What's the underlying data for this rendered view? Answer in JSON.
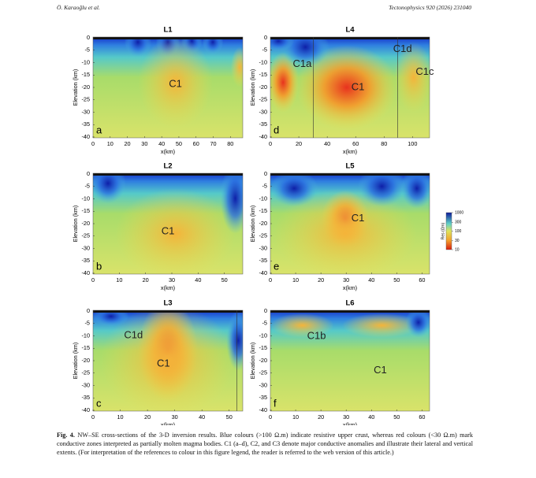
{
  "header": {
    "author": "Ö. Karaoğlu et al.",
    "journal": "Tectonophysics 920 (2026) 231040"
  },
  "panels": [
    {
      "title": "L1",
      "letter": "a",
      "xlabel": "x(km)",
      "ylabel": "Elevation (km)",
      "xticks": [
        0,
        10,
        20,
        30,
        40,
        50,
        60,
        70,
        80
      ],
      "yticks": [
        0,
        -5,
        -10,
        -15,
        -20,
        -25,
        -30,
        -35,
        -40
      ],
      "annotations": [
        "C1"
      ]
    },
    {
      "title": "L4",
      "letter": "d",
      "xlabel": "x(km)",
      "ylabel": "Elevation (km)",
      "xticks": [
        0,
        20,
        40,
        60,
        80,
        100
      ],
      "yticks": [
        0,
        -5,
        -10,
        -15,
        -20,
        -25,
        -30,
        -35,
        -40
      ],
      "annotations": [
        "C1a",
        "C1d",
        "C1c",
        "C1"
      ]
    },
    {
      "title": "L2",
      "letter": "b",
      "xlabel": "x(km)",
      "ylabel": "Elevation (km)",
      "xticks": [
        0,
        10,
        20,
        30,
        40,
        50
      ],
      "yticks": [
        0,
        -5,
        -10,
        -15,
        -20,
        -25,
        -30,
        -35,
        -40
      ],
      "annotations": [
        "C1"
      ]
    },
    {
      "title": "L5",
      "letter": "e",
      "xlabel": "x(km)",
      "ylabel": "Elevation (km)",
      "xticks": [
        0,
        10,
        20,
        30,
        40,
        50,
        60
      ],
      "yticks": [
        0,
        -5,
        -10,
        -15,
        -20,
        -25,
        -30,
        -35,
        -40
      ],
      "annotations": [
        "C1"
      ]
    },
    {
      "title": "L3",
      "letter": "c",
      "xlabel": "x(km)",
      "ylabel": "Elevation (km)",
      "xticks": [
        0,
        10,
        20,
        30,
        40,
        50
      ],
      "yticks": [
        0,
        -5,
        -10,
        -15,
        -20,
        -25,
        -30,
        -35,
        -40
      ],
      "annotations": [
        "C1d",
        "C1"
      ]
    },
    {
      "title": "L6",
      "letter": "f",
      "xlabel": "x(km)",
      "ylabel": "Elevation (km)",
      "xticks": [
        0,
        10,
        20,
        30,
        40,
        50,
        60
      ],
      "yticks": [
        0,
        -5,
        -10,
        -15,
        -20,
        -25,
        -30,
        -35,
        -40
      ],
      "annotations": [
        "C1b",
        "C1"
      ]
    }
  ],
  "colorbar": {
    "label": "Res (Ωm)",
    "ticks": [
      1000,
      300,
      100,
      30,
      10
    ]
  },
  "caption": {
    "label": "Fig. 4.",
    "text": "NW–SE cross-sections of the 3-D inversion results. Blue colours (>100 Ω.m) indicate resistive upper crust, whereas red colours (<30 Ω.m) mark conductive zones interpreted as partially molten magma bodies. C1 (a–d), C2, and C3 denote major conductive anomalies and illustrate their lateral and vertical extents. (For interpretation of the references to colour in this figure legend, the reader is referred to the web version of this article.)"
  }
}
